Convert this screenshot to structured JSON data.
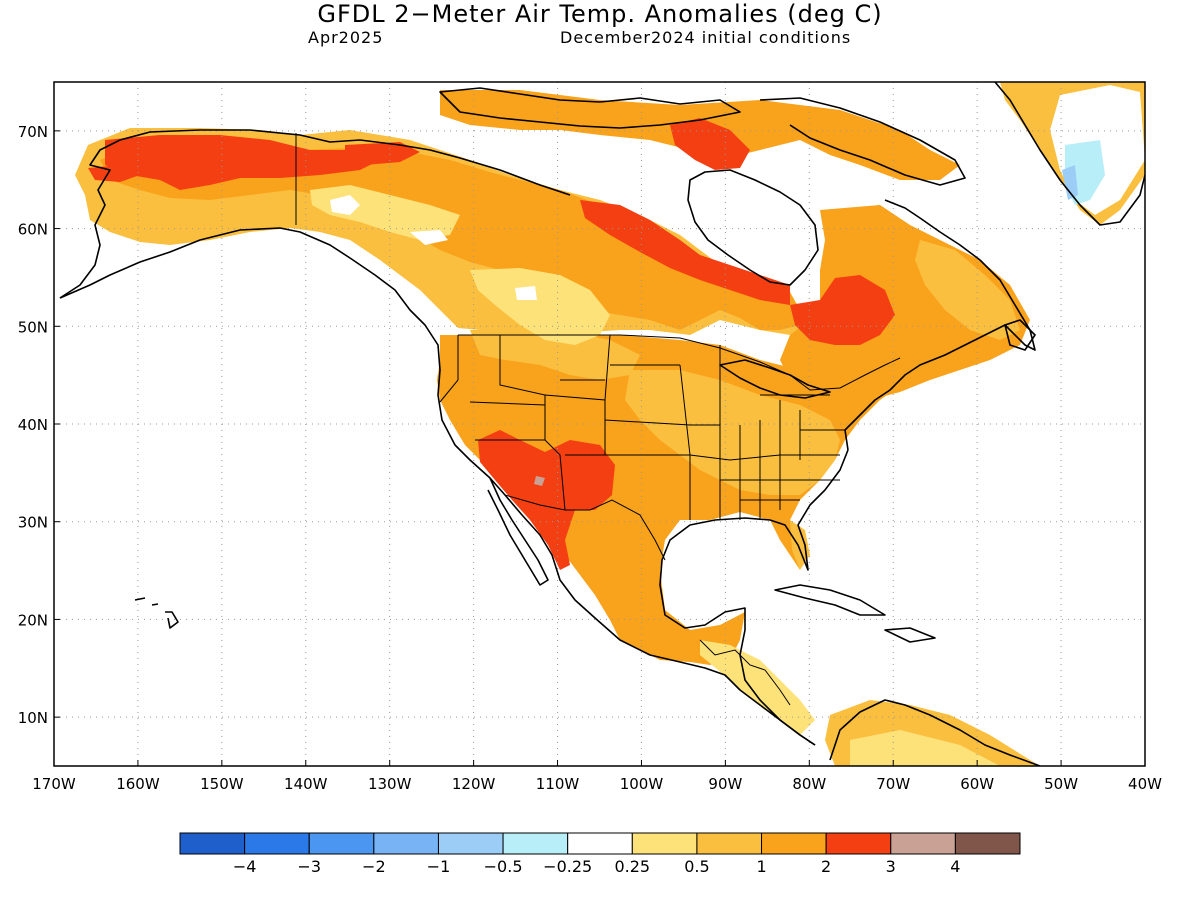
{
  "title": "GFDL 2−Meter Air Temp. Anomalies (deg C)",
  "subtitle_left": "Apr2025",
  "subtitle_right": "December2024 initial conditions",
  "map": {
    "lon_range": [
      -170,
      -40
    ],
    "lat_range": [
      5,
      75
    ],
    "x_ticks": [
      "170W",
      "160W",
      "150W",
      "140W",
      "130W",
      "120W",
      "110W",
      "100W",
      "90W",
      "80W",
      "70W",
      "60W",
      "50W",
      "40W"
    ],
    "y_ticks": [
      "70N",
      "60N",
      "50N",
      "40N",
      "30N",
      "20N",
      "10N"
    ],
    "grid": "dotted"
  },
  "colorbar": {
    "colors": [
      "#1f5fcc",
      "#2b78e8",
      "#4a96f0",
      "#78b4f5",
      "#9ccdf7",
      "#b8eef8",
      "#ffffff",
      "#fde27a",
      "#fbbf3f",
      "#f9a21b",
      "#f43f12",
      "#c9a195",
      "#7f5649"
    ],
    "labels": [
      "−4",
      "−3",
      "−2",
      "−1",
      "−0.5",
      "−0.25",
      "0.25",
      "0.5",
      "1",
      "2",
      "3",
      "4"
    ]
  },
  "legend_colors": {
    "ocean": "#ffffff",
    "coast": "#000000"
  }
}
